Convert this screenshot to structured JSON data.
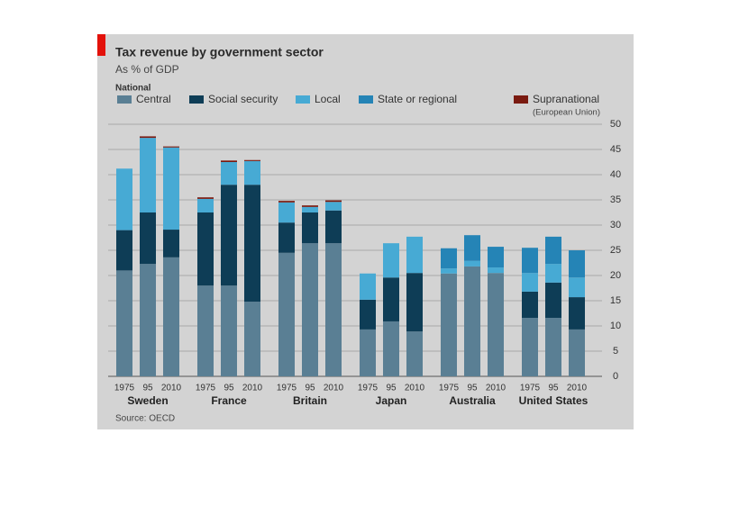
{
  "chart_data": {
    "type": "stacked-bar",
    "title": "Tax revenue by government sector",
    "subtitle": "As % of GDP",
    "legend_group": "National",
    "source": "Source: OECD",
    "groups": [
      "Sweden",
      "France",
      "Britain",
      "Japan",
      "Australia",
      "United States"
    ],
    "categories": [
      "1975",
      "95",
      "2010",
      "1975",
      "95",
      "2010",
      "1975",
      "95",
      "2010",
      "1975",
      "95",
      "2010",
      "1975",
      "95",
      "2010",
      "1975",
      "95",
      "2010"
    ],
    "series": [
      {
        "name": "Central",
        "color": "#5a7f94",
        "values": [
          21,
          22.3,
          23.6,
          18,
          18,
          14.8,
          24.5,
          26.4,
          26.4,
          9.3,
          10.9,
          8.9,
          20.4,
          21.8,
          20.5,
          11.6,
          11.6,
          9.3
        ]
      },
      {
        "name": "Social security",
        "color": "#0e3d56",
        "values": [
          8,
          10.2,
          5.5,
          14.5,
          20,
          23.2,
          6,
          6.1,
          6.5,
          5.9,
          8.7,
          11.6,
          null,
          null,
          null,
          5.2,
          7,
          6.4
        ]
      },
      {
        "name": "Local",
        "color": "#47aad4",
        "values": [
          12.2,
          14.8,
          16.3,
          2.7,
          4.5,
          4.7,
          4,
          1.1,
          1.7,
          5.2,
          6.8,
          7.2,
          1,
          1.1,
          1.1,
          3.7,
          3.7,
          3.9
        ]
      },
      {
        "name": "State or regional",
        "color": "#2584b6",
        "values": [
          null,
          null,
          null,
          null,
          null,
          null,
          null,
          null,
          null,
          null,
          null,
          null,
          4,
          5.1,
          4.1,
          5,
          5.4,
          5.4
        ]
      },
      {
        "name": "Supranational",
        "note": "(European Union)",
        "color": "#7a1a10",
        "values": [
          null,
          0.3,
          0.2,
          0.3,
          0.3,
          0.2,
          0.3,
          0.3,
          0.3,
          null,
          null,
          null,
          null,
          null,
          null,
          null,
          null,
          null
        ]
      }
    ],
    "ylim": [
      0,
      50
    ],
    "yticks": [
      0,
      5,
      10,
      15,
      20,
      25,
      30,
      35,
      40,
      45,
      50
    ],
    "grid": true
  }
}
